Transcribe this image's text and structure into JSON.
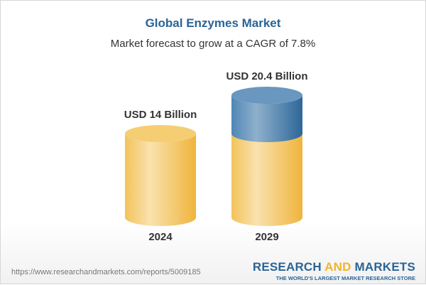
{
  "chart_data": {
    "type": "bar",
    "title": "Global Enzymes Market",
    "subtitle": "Market forecast to grow at a CAGR of 7.8%",
    "categories": [
      "2024",
      "2029"
    ],
    "values": [
      14,
      20.4
    ],
    "data_labels": [
      "USD 14 Billion",
      "USD 20.4 Billion"
    ],
    "unit": "USD Billion",
    "style": "3d-cylinder",
    "colors": {
      "base": "#f3c55f",
      "growth": "#4a7fae"
    },
    "grid": false
  },
  "footer": {
    "url": "https://www.researchandmarkets.com/reports/5009185",
    "logo_part1": "RESEARCH ",
    "logo_part2": "AND",
    "logo_part3": " MARKETS",
    "tagline": "THE WORLD'S LARGEST MARKET RESEARCH STORE"
  }
}
